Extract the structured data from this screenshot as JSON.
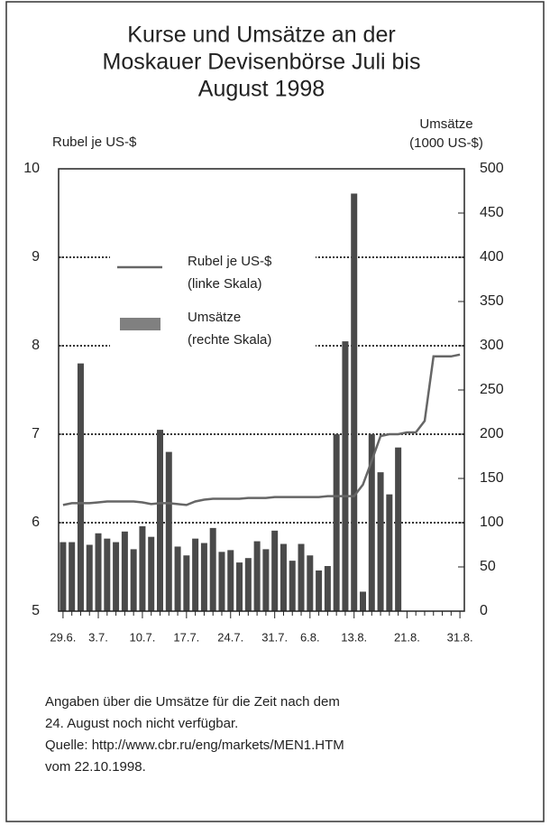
{
  "chart_data": {
    "type": "bar_line",
    "title": [
      "Kurse und Umsätze an der",
      "Moskauer Devisenbörse Juli bis",
      "August 1998"
    ],
    "ylabel": "Rubel je US-$",
    "y2label": [
      "Umsätze",
      "(1000 US-$)"
    ],
    "categories": [
      "29.6.",
      null,
      null,
      null,
      "3.7.",
      null,
      null,
      null,
      null,
      "10.7.",
      null,
      null,
      null,
      null,
      "17.7.",
      null,
      null,
      null,
      null,
      "24.7.",
      null,
      null,
      null,
      null,
      "31.7.",
      null,
      null,
      null,
      "6.8.",
      null,
      null,
      null,
      null,
      "13.8.",
      null,
      null,
      null,
      null,
      null,
      "21.8.",
      null,
      null,
      null,
      null,
      null,
      "31.8."
    ],
    "series": [
      {
        "name": "Umsätze",
        "legend_note": "(rechte Skala)",
        "axis": "y2",
        "kind": "bar",
        "color": "#4a4a4a",
        "values": [
          78,
          78,
          280,
          75,
          88,
          82,
          78,
          90,
          70,
          96,
          84,
          205,
          180,
          73,
          63,
          82,
          77,
          94,
          67,
          69,
          55,
          60,
          79,
          70,
          91,
          76,
          57,
          76,
          63,
          46,
          51,
          200,
          305,
          472,
          22,
          200,
          157,
          132,
          185,
          null,
          null,
          null,
          null,
          null,
          null,
          null
        ]
      },
      {
        "name": "Rubel je US-$",
        "legend_note": "(linke Skala)",
        "axis": "y",
        "kind": "line",
        "color": "#666666",
        "values": [
          6.2,
          6.22,
          6.22,
          6.22,
          6.23,
          6.24,
          6.24,
          6.24,
          6.24,
          6.23,
          6.21,
          6.22,
          6.22,
          6.21,
          6.2,
          6.24,
          6.26,
          6.27,
          6.27,
          6.27,
          6.27,
          6.28,
          6.28,
          6.28,
          6.29,
          6.29,
          6.29,
          6.29,
          6.29,
          6.29,
          6.3,
          6.3,
          6.3,
          6.3,
          6.43,
          6.7,
          6.98,
          7.0,
          7.0,
          7.02,
          7.02,
          7.15,
          7.88,
          7.88,
          7.88,
          7.9
        ]
      }
    ],
    "ylim": [
      5,
      10
    ],
    "yticks": [
      5,
      6,
      7,
      8,
      9,
      10
    ],
    "y2lim": [
      0,
      500
    ],
    "y2ticks": [
      0,
      50,
      100,
      150,
      200,
      250,
      300,
      350,
      400,
      450,
      500
    ],
    "grid": true,
    "footnote": [
      "Angaben über die Umsätze für die Zeit nach dem",
      "24. August noch nicht verfügbar.",
      "Quelle: http://www.cbr.ru/eng/markets/MEN1.HTM",
      "vom 22.10.1998."
    ]
  }
}
